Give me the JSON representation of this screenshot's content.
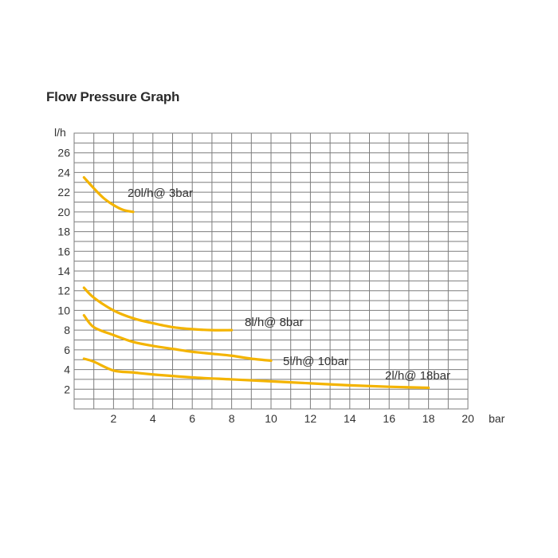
{
  "chart_data": {
    "type": "line",
    "title": "Flow Pressure Graph",
    "xlabel": "bar",
    "ylabel": "l/h",
    "xlim": [
      0,
      20
    ],
    "ylim": [
      0,
      28
    ],
    "x_ticks": [
      2,
      4,
      6,
      8,
      10,
      12,
      14,
      16,
      18,
      20
    ],
    "y_ticks": [
      2,
      4,
      6,
      8,
      10,
      12,
      14,
      16,
      18,
      20,
      22,
      24,
      26
    ],
    "grid": true,
    "line_color": "#f4b400",
    "series": [
      {
        "label": "20l/h@ 3bar",
        "points": [
          [
            0.5,
            23.5
          ],
          [
            1.0,
            22.4
          ],
          [
            1.5,
            21.4
          ],
          [
            2.0,
            20.7
          ],
          [
            2.5,
            20.2
          ],
          [
            3.0,
            20.0
          ]
        ]
      },
      {
        "label": "8l/h@ 8bar",
        "points": [
          [
            0.5,
            12.3
          ],
          [
            1.0,
            11.3
          ],
          [
            2.0,
            10.0
          ],
          [
            3.0,
            9.2
          ],
          [
            4.0,
            8.7
          ],
          [
            5.0,
            8.3
          ],
          [
            6.0,
            8.1
          ],
          [
            7.0,
            8.0
          ],
          [
            8.0,
            8.0
          ]
        ]
      },
      {
        "label": "5l/h@ 10bar",
        "points": [
          [
            0.5,
            9.5
          ],
          [
            1.0,
            8.3
          ],
          [
            2.0,
            7.5
          ],
          [
            3.0,
            6.8
          ],
          [
            4.0,
            6.4
          ],
          [
            5.0,
            6.1
          ],
          [
            6.0,
            5.8
          ],
          [
            7.0,
            5.6
          ],
          [
            8.0,
            5.4
          ],
          [
            9.0,
            5.1
          ],
          [
            10.0,
            4.9
          ]
        ]
      },
      {
        "label": "2l/h@ 18bar",
        "points": [
          [
            0.5,
            5.1
          ],
          [
            1.0,
            4.8
          ],
          [
            2.0,
            3.9
          ],
          [
            3.0,
            3.7
          ],
          [
            4.0,
            3.5
          ],
          [
            6.0,
            3.2
          ],
          [
            8.0,
            3.0
          ],
          [
            10.0,
            2.8
          ],
          [
            12.0,
            2.6
          ],
          [
            14.0,
            2.4
          ],
          [
            16.0,
            2.25
          ],
          [
            18.0,
            2.15
          ]
        ]
      }
    ]
  }
}
